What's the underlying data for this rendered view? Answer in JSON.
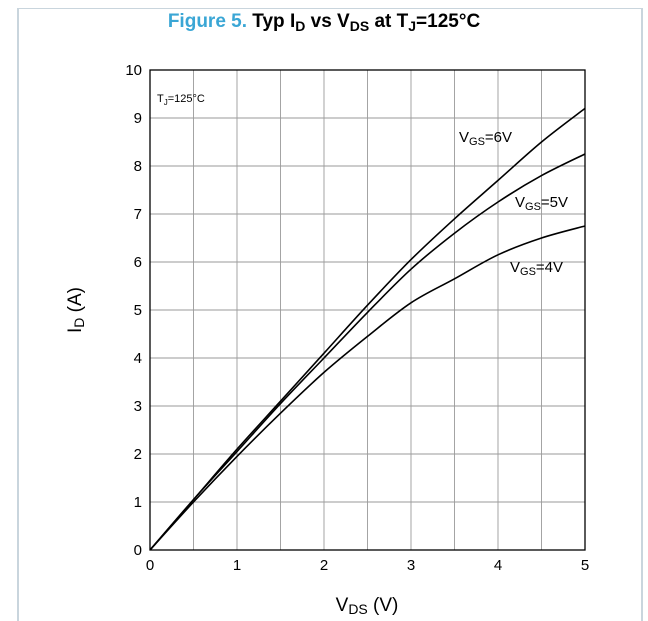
{
  "title": {
    "figure": "Figure 5.",
    "text_parts": [
      "Typ I",
      "D",
      " vs V",
      "DS",
      " at T",
      "J",
      "=125°C"
    ]
  },
  "chart_data": {
    "type": "line",
    "xlabel": "V_DS (V)",
    "xlabel_main": "V",
    "xlabel_sub": "DS",
    "xlabel_unit": " (V)",
    "ylabel": "I_D (A)",
    "ylabel_main": "I",
    "ylabel_sub": "D",
    "ylabel_unit": " (A)",
    "xlim": [
      0,
      5
    ],
    "ylim": [
      0,
      10
    ],
    "xticks": [
      0,
      1,
      2,
      3,
      4,
      5
    ],
    "yticks": [
      0,
      1,
      2,
      3,
      4,
      5,
      6,
      7,
      8,
      9,
      10
    ],
    "x_minor_step": 0.5,
    "grid": true,
    "annotation": {
      "main": "T",
      "sub": "J",
      "rest": "=125°C"
    },
    "series": [
      {
        "name": "VGS=6V",
        "label_main": "V",
        "label_sub": "GS",
        "label_rest": "=6V",
        "x": [
          0,
          0.5,
          1,
          1.5,
          2,
          2.5,
          3,
          3.5,
          4,
          4.5,
          5
        ],
        "y": [
          0,
          1.05,
          2.1,
          3.1,
          4.1,
          5.1,
          6.05,
          6.9,
          7.7,
          8.5,
          9.2
        ]
      },
      {
        "name": "VGS=5V",
        "label_main": "V",
        "label_sub": "GS",
        "label_rest": "=5V",
        "x": [
          0,
          0.5,
          1,
          1.5,
          2,
          2.5,
          3,
          3.5,
          4,
          4.5,
          5
        ],
        "y": [
          0,
          1.05,
          2.05,
          3.05,
          4.0,
          4.95,
          5.85,
          6.6,
          7.25,
          7.8,
          8.25
        ]
      },
      {
        "name": "VGS=4V",
        "label_main": "V",
        "label_sub": "GS",
        "label_rest": "=4V",
        "x": [
          0,
          0.5,
          1,
          1.5,
          2,
          2.5,
          3,
          3.5,
          4,
          4.5,
          5
        ],
        "y": [
          0,
          1.0,
          1.95,
          2.85,
          3.7,
          4.45,
          5.15,
          5.65,
          6.15,
          6.5,
          6.75
        ]
      }
    ]
  }
}
